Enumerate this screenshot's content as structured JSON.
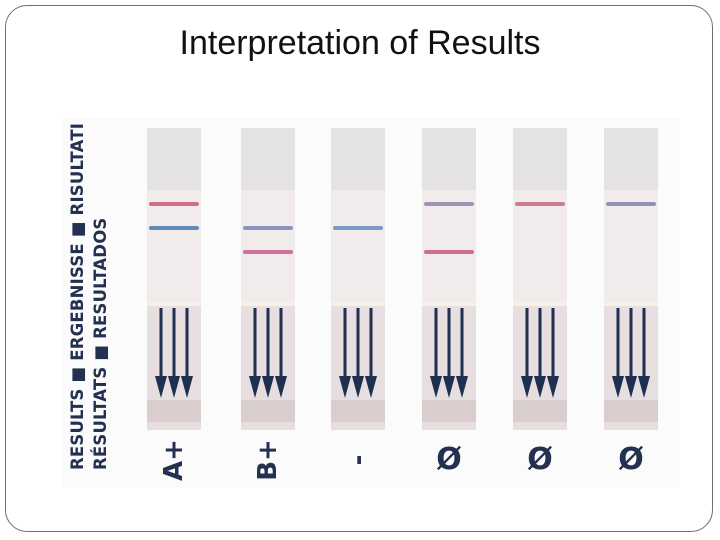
{
  "title": "Interpretation of Results",
  "side_label": {
    "line1": "RESULTS ■ ERGEBNISSE ■ RISULTATI",
    "line2": "RÉSULTATS ■ RESULTADOS"
  },
  "strips": [
    {
      "result": "A+",
      "rotated": true,
      "lines": [
        {
          "color": "#c8506e",
          "at": "control"
        },
        {
          "color": "#3f6fb0",
          "at": "upper"
        }
      ]
    },
    {
      "result": "B+",
      "rotated": true,
      "lines": [
        {
          "color": "#6f7fb4",
          "at": "upper"
        },
        {
          "color": "#c8508a",
          "at": "lower"
        }
      ]
    },
    {
      "result": "-",
      "rotated": true,
      "lines": [
        {
          "color": "#5a86c2",
          "at": "upper"
        }
      ]
    },
    {
      "result": "Ø",
      "rotated": false,
      "lines": [
        {
          "color": "#8a7fa4",
          "at": "control"
        },
        {
          "color": "#c8507a",
          "at": "lower"
        }
      ]
    },
    {
      "result": "Ø",
      "rotated": false,
      "lines": [
        {
          "color": "#c4607a",
          "at": "control"
        }
      ]
    },
    {
      "result": "Ø",
      "rotated": false,
      "lines": [
        {
          "color": "#7a7aa4",
          "at": "control"
        }
      ]
    }
  ],
  "colors": {
    "arrow": "#1f2f4f",
    "label": "#23304f"
  }
}
